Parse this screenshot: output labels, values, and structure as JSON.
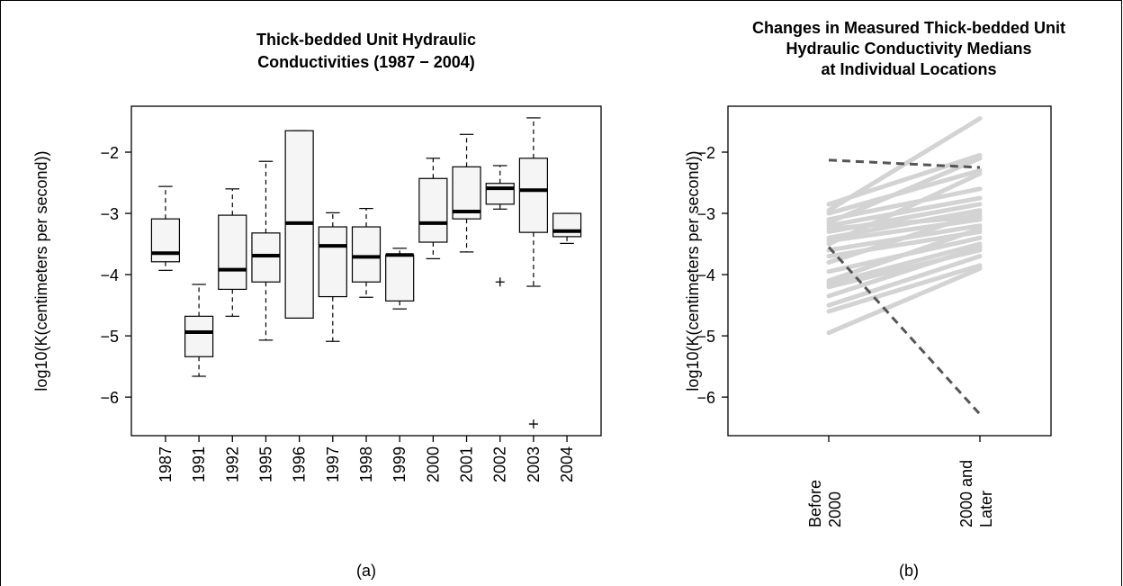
{
  "chart_data": [
    {
      "type": "box",
      "title": [
        "Thick-bedded Unit Hydraulic",
        "Conductivities (1987 − 2004)"
      ],
      "ylabel": "log10(K(centimeters per second))",
      "caption": "(a)",
      "categories": [
        "1987",
        "1991",
        "1992",
        "1995",
        "1996",
        "1997",
        "1998",
        "1999",
        "2000",
        "2001",
        "2002",
        "2003",
        "2004"
      ],
      "boxes": [
        {
          "min": -3.93,
          "q1": -3.79,
          "median": -3.65,
          "q3": -3.09,
          "max": -2.56,
          "outliers": []
        },
        {
          "min": -5.66,
          "q1": -5.34,
          "median": -4.94,
          "q3": -4.68,
          "max": -4.16,
          "outliers": []
        },
        {
          "min": -4.68,
          "q1": -4.24,
          "median": -3.92,
          "q3": -3.03,
          "max": -2.6,
          "outliers": []
        },
        {
          "min": -5.07,
          "q1": -4.12,
          "median": -3.69,
          "q3": -3.32,
          "max": -2.15,
          "outliers": []
        },
        {
          "min": -4.71,
          "q1": -4.71,
          "median": -3.16,
          "q3": -1.65,
          "max": -1.65,
          "outliers": []
        },
        {
          "min": -5.09,
          "q1": -4.36,
          "median": -3.53,
          "q3": -3.22,
          "max": -2.99,
          "outliers": []
        },
        {
          "min": -4.37,
          "q1": -4.12,
          "median": -3.71,
          "q3": -3.22,
          "max": -2.92,
          "outliers": []
        },
        {
          "min": -4.56,
          "q1": -4.43,
          "median": -3.68,
          "q3": -3.68,
          "max": -3.57,
          "outliers": []
        },
        {
          "min": -3.74,
          "q1": -3.47,
          "median": -3.16,
          "q3": -2.43,
          "max": -2.1,
          "outliers": []
        },
        {
          "min": -3.63,
          "q1": -3.09,
          "median": -2.97,
          "q3": -2.24,
          "max": -1.71,
          "outliers": []
        },
        {
          "min": -2.93,
          "q1": -2.85,
          "median": -2.59,
          "q3": -2.51,
          "max": -2.22,
          "outliers": [
            -4.12
          ]
        },
        {
          "min": -4.19,
          "q1": -3.31,
          "median": -2.62,
          "q3": -2.1,
          "max": -1.44,
          "outliers": [
            -6.44
          ]
        },
        {
          "min": -3.49,
          "q1": -3.38,
          "median": -3.29,
          "q3": -3.0,
          "max": -3.0,
          "outliers": []
        }
      ],
      "box_color": "#f5f5f5",
      "ylim": [
        -6.63,
        -1.25
      ],
      "yticks": [
        {
          "value": -2,
          "label": "−2"
        },
        {
          "value": -3,
          "label": "−3"
        },
        {
          "value": -4,
          "label": "−4"
        },
        {
          "value": -5,
          "label": "−5"
        },
        {
          "value": -6,
          "label": "−6"
        }
      ]
    },
    {
      "type": "line",
      "title": [
        "Changes in Measured Thick-bedded Unit",
        "Hydraulic Conductivity Medians",
        "at Individual Locations"
      ],
      "ylabel": "log10(K(centimeters per second))",
      "caption": "(b)",
      "categories": [
        [
          "Before",
          "2000"
        ],
        [
          "2000 and",
          "Later"
        ]
      ],
      "ylim": [
        -6.63,
        -1.25
      ],
      "yticks": [
        {
          "value": -2,
          "label": "−2"
        },
        {
          "value": -3,
          "label": "−3"
        },
        {
          "value": -4,
          "label": "−4"
        },
        {
          "value": -5,
          "label": "−5"
        },
        {
          "value": -6,
          "label": "−6"
        }
      ],
      "series": [
        {
          "color": "#d3d3d3",
          "values": [
            -2.85,
            -2.05
          ]
        },
        {
          "color": "#d3d3d3",
          "values": [
            -2.95,
            -1.45
          ]
        },
        {
          "color": "#d3d3d3",
          "values": [
            -3.0,
            -2.3
          ]
        },
        {
          "color": "#d3d3d3",
          "values": [
            -3.1,
            -2.6
          ]
        },
        {
          "color": "#d3d3d3",
          "values": [
            -3.2,
            -2.75
          ]
        },
        {
          "color": "#d3d3d3",
          "values": [
            -3.25,
            -3.05
          ]
        },
        {
          "color": "#d3d3d3",
          "values": [
            -3.3,
            -2.85
          ]
        },
        {
          "color": "#d3d3d3",
          "values": [
            -3.4,
            -2.95
          ]
        },
        {
          "color": "#d3d3d3",
          "values": [
            -3.45,
            -3.1
          ]
        },
        {
          "color": "#d3d3d3",
          "values": [
            -3.5,
            -2.35
          ]
        },
        {
          "color": "#d3d3d3",
          "values": [
            -3.6,
            -3.2
          ]
        },
        {
          "color": "#d3d3d3",
          "values": [
            -3.7,
            -3.3
          ]
        },
        {
          "color": "#d3d3d3",
          "values": [
            -3.8,
            -3.0
          ]
        },
        {
          "color": "#d3d3d3",
          "values": [
            -3.95,
            -3.4
          ]
        },
        {
          "color": "#d3d3d3",
          "values": [
            -4.1,
            -3.25
          ]
        },
        {
          "color": "#d3d3d3",
          "values": [
            -4.15,
            -3.5
          ]
        },
        {
          "color": "#d3d3d3",
          "values": [
            -4.2,
            -3.6
          ]
        },
        {
          "color": "#d3d3d3",
          "values": [
            -4.35,
            -3.55
          ]
        },
        {
          "color": "#d3d3d3",
          "values": [
            -4.5,
            -3.7
          ]
        },
        {
          "color": "#d3d3d3",
          "values": [
            -4.6,
            -3.85
          ]
        },
        {
          "color": "#d3d3d3",
          "values": [
            -4.95,
            -3.9
          ]
        },
        {
          "color": "#d3d3d3",
          "values": [
            -3.15,
            -2.1
          ]
        },
        {
          "color": "#555555",
          "dashed": true,
          "values": [
            -2.13,
            -2.25
          ]
        },
        {
          "color": "#555555",
          "dashed": true,
          "values": [
            -3.55,
            -6.28
          ]
        }
      ]
    }
  ]
}
